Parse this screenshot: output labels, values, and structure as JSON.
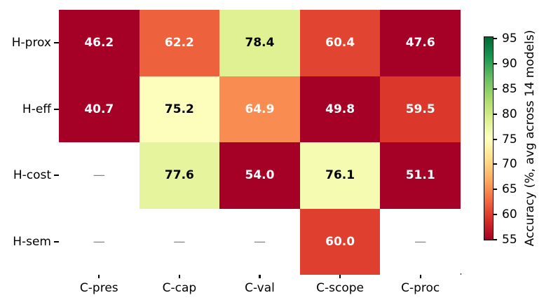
{
  "figure": {
    "background": "#ffffff",
    "axis_color": "#000000"
  },
  "chart_data": {
    "type": "heatmap",
    "title": "",
    "xlabel": "",
    "ylabel": "",
    "rows": [
      "H-prox",
      "H-eff",
      "H-cost",
      "H-sem"
    ],
    "columns": [
      "C-pres",
      "C-cap",
      "C-val",
      "C-scope",
      "C-proc"
    ],
    "values": [
      [
        46.2,
        62.2,
        78.4,
        60.4,
        47.6
      ],
      [
        40.7,
        75.2,
        64.9,
        49.8,
        59.5
      ],
      [
        null,
        77.6,
        54.0,
        76.1,
        51.1
      ],
      [
        null,
        null,
        null,
        60.0,
        null
      ]
    ],
    "missing_marker": "—",
    "missing_marker_color": "#808080",
    "cells": [
      [
        {
          "label": "46.2",
          "bg": "#a50026",
          "fg": "#ffffff"
        },
        {
          "label": "62.2",
          "bg": "#ee613d",
          "fg": "#ffffff"
        },
        {
          "label": "78.4",
          "bg": "#dff193",
          "fg": "#000000"
        },
        {
          "label": "60.4",
          "bg": "#e14531",
          "fg": "#ffffff"
        },
        {
          "label": "47.6",
          "bg": "#a50026",
          "fg": "#ffffff"
        }
      ],
      [
        {
          "label": "40.7",
          "bg": "#a50026",
          "fg": "#ffffff"
        },
        {
          "label": "75.2",
          "bg": "#fdfebb",
          "fg": "#000000"
        },
        {
          "label": "64.9",
          "bg": "#f88c51",
          "fg": "#ffffff"
        },
        {
          "label": "49.8",
          "bg": "#a50026",
          "fg": "#ffffff"
        },
        {
          "label": "59.5",
          "bg": "#db382b",
          "fg": "#ffffff"
        }
      ],
      [
        {
          "label": "—",
          "bg": "#ffffff",
          "fg": "#808080"
        },
        {
          "label": "77.6",
          "bg": "#e6f59d",
          "fg": "#000000"
        },
        {
          "label": "54.0",
          "bg": "#a50026",
          "fg": "#ffffff"
        },
        {
          "label": "76.1",
          "bg": "#f5fbb0",
          "fg": "#000000"
        },
        {
          "label": "51.1",
          "bg": "#a50026",
          "fg": "#ffffff"
        }
      ],
      [
        {
          "label": "—",
          "bg": "#ffffff",
          "fg": "#808080"
        },
        {
          "label": "—",
          "bg": "#ffffff",
          "fg": "#808080"
        },
        {
          "label": "—",
          "bg": "#ffffff",
          "fg": "#808080"
        },
        {
          "label": "60.0",
          "bg": "#de3f2e",
          "fg": "#ffffff"
        },
        {
          "label": "—",
          "bg": "#ffffff",
          "fg": "#808080"
        }
      ]
    ],
    "colorbar": {
      "label": "Accuracy (%, avg across 14 models)",
      "min": 55,
      "max": 95,
      "ticks": [
        55,
        60,
        65,
        70,
        75,
        80,
        85,
        90,
        95
      ],
      "colormap": "RdYlGn",
      "gradient_stops_bottom_to_top": [
        "#a50026",
        "#d73027",
        "#f46d43",
        "#fdae61",
        "#fee08b",
        "#ffffbf",
        "#d9ef8b",
        "#a6d96a",
        "#66bd63",
        "#1a9850",
        "#006837"
      ]
    },
    "legend": null,
    "grid": false
  }
}
